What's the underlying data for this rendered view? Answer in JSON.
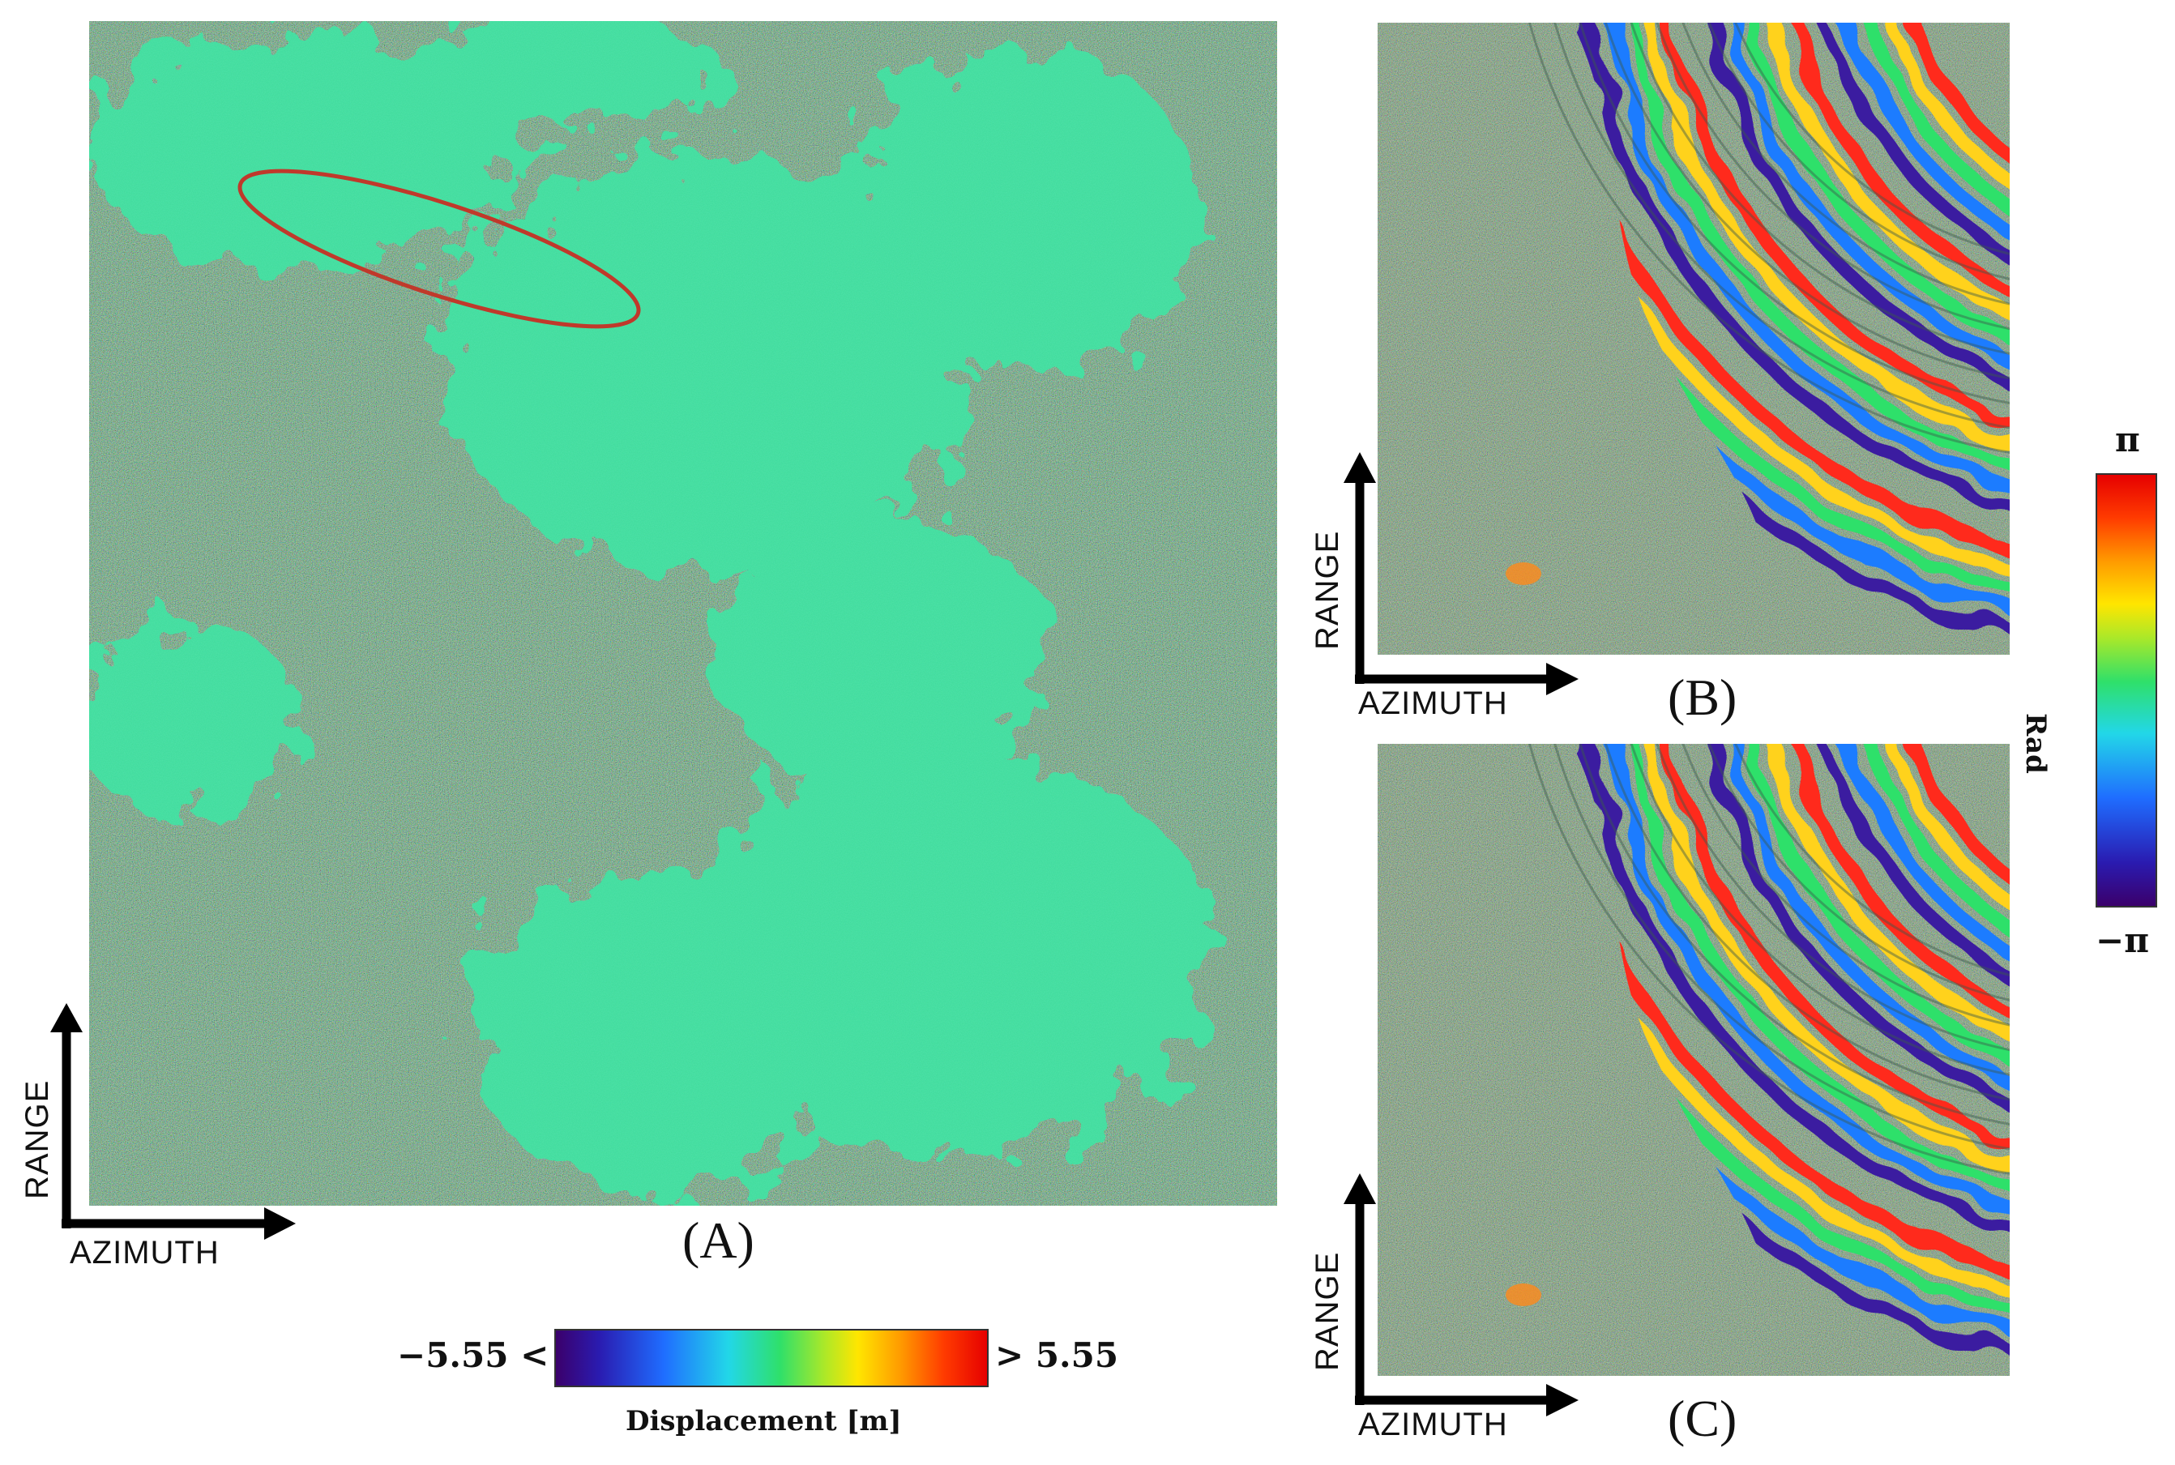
{
  "panels": {
    "a": {
      "label": "(A)",
      "range": "RANGE",
      "azimuth": "AZIMUTH"
    },
    "b": {
      "label": "(B)",
      "range": "RANGE",
      "azimuth": "AZIMUTH"
    },
    "c": {
      "label": "(C)",
      "range": "RANGE",
      "azimuth": "AZIMUTH"
    }
  },
  "displacement_colorbar": {
    "min_label": "−5.55 <",
    "max_label": "> 5.55",
    "title": "Displacement [m]"
  },
  "phase_colorbar": {
    "max_label": "π",
    "min_label": "−π",
    "title": "Rad"
  },
  "colors": {
    "highlight_ellipse": "#c0392b",
    "background_noise": "#5a9a6a",
    "coherent_area": "#3fe0a0"
  }
}
